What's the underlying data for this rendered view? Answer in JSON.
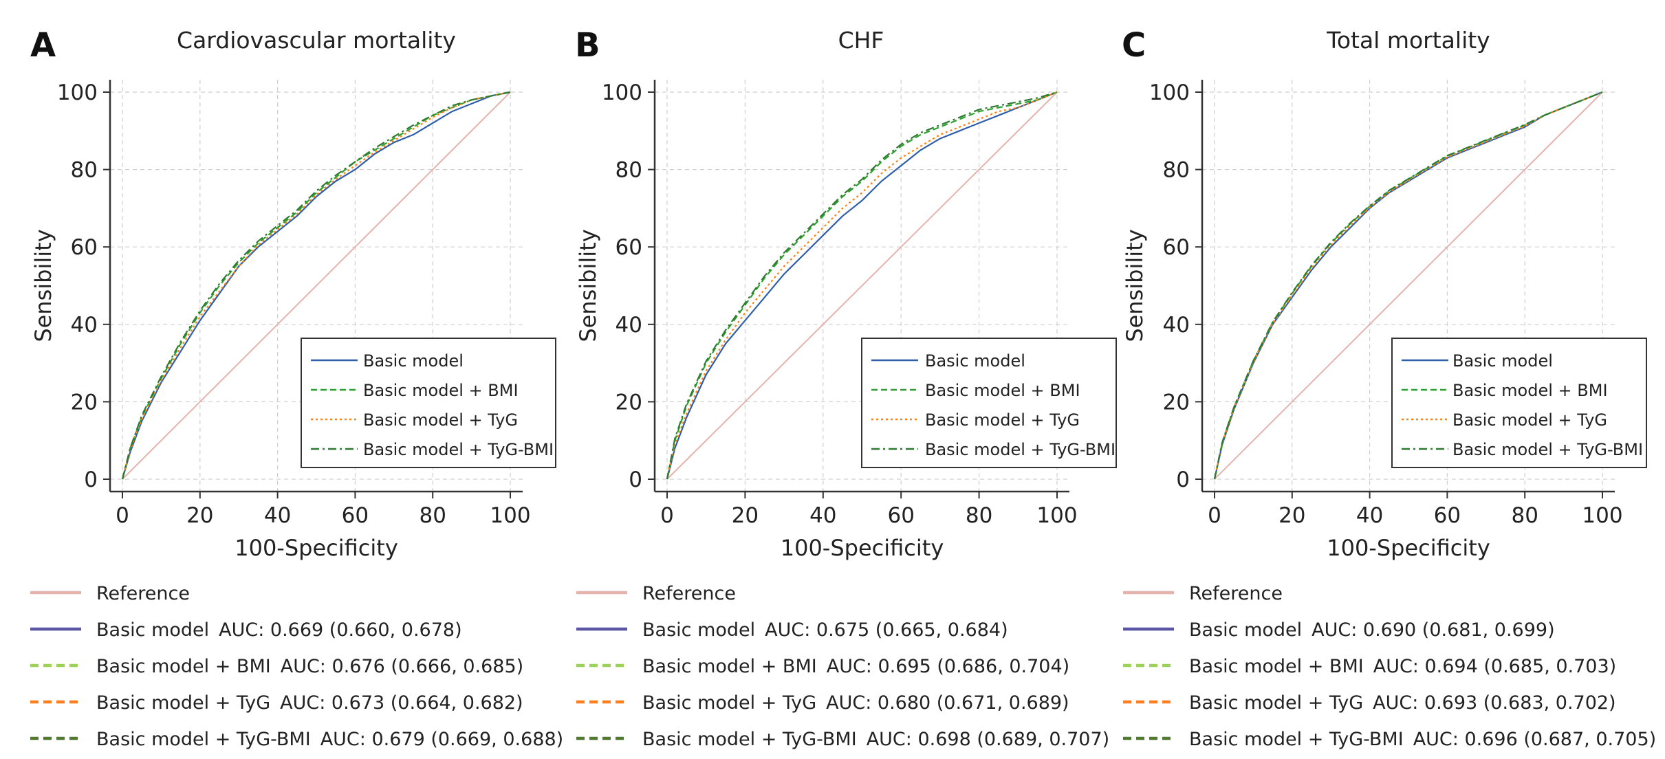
{
  "colors": {
    "reference": "#e5b3ac",
    "basic": "#2f5fa8",
    "bmi": "#2ca02c",
    "tyg": "#ff7f0e",
    "tygbmi": "#2d7a30",
    "bottom_basic": "#5a55a5",
    "bottom_bmi": "#9bd356",
    "bottom_tyg": "#ff7f1e",
    "bottom_tygbmi": "#4f7a30",
    "grid": "#cfcfcf"
  },
  "chart_data": [
    {
      "type": "line",
      "panel": "A",
      "title": "Cardiovascular mortality",
      "xlabel": "100-Specificity",
      "ylabel": "Sensibility",
      "xlim": [
        0,
        100
      ],
      "ylim": [
        0,
        100
      ],
      "xticks": [
        "0",
        "20",
        "40",
        "60",
        "80",
        "100"
      ],
      "yticks": [
        "0",
        "20",
        "40",
        "60",
        "80",
        "100"
      ],
      "grid": true,
      "legend_position": "bottom-right",
      "x": [
        0,
        2,
        5,
        10,
        15,
        20,
        25,
        30,
        35,
        40,
        45,
        50,
        55,
        60,
        65,
        70,
        75,
        80,
        85,
        90,
        95,
        100
      ],
      "series": [
        {
          "name": "Basic model",
          "style": "solid",
          "values": [
            0,
            7,
            15,
            25,
            33,
            41,
            48,
            55,
            60,
            64,
            68,
            73,
            77,
            80,
            84,
            87,
            89,
            92,
            95,
            97,
            99,
            100
          ]
        },
        {
          "name": "Basic model + BMI",
          "style": "dashed",
          "values": [
            0,
            8,
            16,
            26,
            35,
            43,
            50,
            56,
            61,
            65,
            69,
            74,
            78,
            82,
            85,
            88,
            91,
            94,
            96,
            98,
            99,
            100
          ]
        },
        {
          "name": "Basic model + TyG",
          "style": "dotted",
          "values": [
            0,
            7.5,
            15.5,
            25.5,
            34,
            42,
            48.5,
            55,
            60.5,
            64.5,
            68.5,
            73.5,
            77.5,
            81,
            84.5,
            87.5,
            90.5,
            93.5,
            96,
            98,
            99,
            100
          ]
        },
        {
          "name": "Basic model + TyG-BMI",
          "style": "dashdot",
          "values": [
            0,
            8,
            16.5,
            26.5,
            35.5,
            43.5,
            50.5,
            56.5,
            61.5,
            65.5,
            69.5,
            74.5,
            78.5,
            82,
            85.5,
            88.5,
            91.5,
            94,
            96.5,
            98,
            99,
            100
          ]
        }
      ],
      "legend_entries": [
        {
          "label": "Reference",
          "auc": ""
        },
        {
          "label": "Basic model",
          "auc": "AUC: 0.669 (0.660, 0.678)"
        },
        {
          "label": "Basic model + BMI",
          "auc": "AUC: 0.676 (0.666, 0.685)"
        },
        {
          "label": "Basic model + TyG",
          "auc": "AUC: 0.673 (0.664, 0.682)"
        },
        {
          "label": "Basic model + TyG-BMI",
          "auc": "AUC: 0.679 (0.669, 0.688)"
        }
      ]
    },
    {
      "type": "line",
      "panel": "B",
      "title": "CHF",
      "xlabel": "100-Specificity",
      "ylabel": "Sensibility",
      "xlim": [
        0,
        100
      ],
      "ylim": [
        0,
        100
      ],
      "xticks": [
        "0",
        "20",
        "40",
        "60",
        "80",
        "100"
      ],
      "yticks": [
        "0",
        "20",
        "40",
        "60",
        "80",
        "100"
      ],
      "grid": true,
      "legend_position": "bottom-right",
      "x": [
        0,
        2,
        5,
        10,
        15,
        20,
        25,
        30,
        35,
        40,
        45,
        50,
        55,
        60,
        65,
        70,
        75,
        80,
        85,
        90,
        95,
        100
      ],
      "series": [
        {
          "name": "Basic model",
          "style": "solid",
          "values": [
            0,
            8,
            16,
            27,
            35,
            41,
            47,
            53,
            58,
            63,
            68,
            72,
            77,
            81,
            85,
            88,
            90,
            92,
            94,
            96,
            98,
            100
          ]
        },
        {
          "name": "Basic model + BMI",
          "style": "dashed",
          "values": [
            0,
            10,
            19,
            30,
            38,
            45,
            52,
            58,
            63,
            68,
            73,
            77,
            82,
            86,
            89,
            91,
            93,
            95,
            96,
            97,
            98,
            100
          ]
        },
        {
          "name": "Basic model + TyG",
          "style": "dotted",
          "values": [
            0,
            9,
            17,
            28,
            36,
            43,
            49,
            55,
            60,
            65,
            70,
            74,
            79,
            83,
            86,
            89,
            91,
            93,
            95,
            96,
            98,
            100
          ]
        },
        {
          "name": "Basic model + TyG-BMI",
          "style": "dashdot",
          "values": [
            0,
            10.5,
            19.5,
            30.5,
            38.5,
            45.5,
            52.5,
            58.5,
            63.5,
            68.5,
            73.5,
            77.5,
            82.5,
            86.5,
            89.5,
            91.5,
            93.5,
            95.5,
            96.5,
            97.5,
            98.5,
            100
          ]
        }
      ],
      "legend_entries": [
        {
          "label": "Reference",
          "auc": ""
        },
        {
          "label": "Basic model",
          "auc": "AUC: 0.675 (0.665, 0.684)"
        },
        {
          "label": "Basic model + BMI",
          "auc": "AUC: 0.695 (0.686, 0.704)"
        },
        {
          "label": "Basic model + TyG",
          "auc": "AUC: 0.680 (0.671, 0.689)"
        },
        {
          "label": "Basic model + TyG-BMI",
          "auc": "AUC: 0.698 (0.689, 0.707)"
        }
      ]
    },
    {
      "type": "line",
      "panel": "C",
      "title": "Total mortality",
      "xlabel": "100-Specificity",
      "ylabel": "Sensibility",
      "xlim": [
        0,
        100
      ],
      "ylim": [
        0,
        100
      ],
      "xticks": [
        "0",
        "20",
        "40",
        "60",
        "80",
        "100"
      ],
      "yticks": [
        "0",
        "20",
        "40",
        "60",
        "80",
        "100"
      ],
      "grid": true,
      "legend_position": "bottom-right",
      "x": [
        0,
        2,
        5,
        10,
        15,
        20,
        25,
        30,
        35,
        40,
        45,
        50,
        55,
        60,
        65,
        70,
        75,
        80,
        85,
        90,
        95,
        100
      ],
      "series": [
        {
          "name": "Basic model",
          "style": "solid",
          "values": [
            0,
            9,
            18,
            30,
            40,
            47,
            54,
            60,
            65,
            70,
            74,
            77,
            80,
            83,
            85,
            87,
            89,
            91,
            94,
            96,
            98,
            100
          ]
        },
        {
          "name": "Basic model + BMI",
          "style": "dashed",
          "values": [
            0,
            9.5,
            18.5,
            30.5,
            40.5,
            48,
            55,
            61,
            66,
            70.5,
            74.5,
            77.5,
            80.5,
            83.5,
            85.5,
            87.5,
            89.5,
            91.5,
            94,
            96,
            98,
            100
          ]
        },
        {
          "name": "Basic model + TyG",
          "style": "dotted",
          "values": [
            0,
            9.2,
            18.2,
            30.2,
            40.2,
            47.5,
            54.5,
            60.5,
            65.5,
            70.2,
            74.2,
            77.2,
            80.2,
            83.2,
            85.2,
            87.2,
            89.2,
            91.2,
            94,
            96,
            98,
            100
          ]
        },
        {
          "name": "Basic model + TyG-BMI",
          "style": "dashdot",
          "values": [
            0,
            9.6,
            18.6,
            30.6,
            40.6,
            48.2,
            55.2,
            61.2,
            66.2,
            70.6,
            74.6,
            77.6,
            80.6,
            83.6,
            85.6,
            87.6,
            89.6,
            91.6,
            94,
            96,
            98,
            100
          ]
        }
      ],
      "legend_entries": [
        {
          "label": "Reference",
          "auc": ""
        },
        {
          "label": "Basic model",
          "auc": "AUC: 0.690 (0.681, 0.699)"
        },
        {
          "label": "Basic model + BMI",
          "auc": "AUC: 0.694 (0.685, 0.703)"
        },
        {
          "label": "Basic model + TyG",
          "auc": "AUC: 0.693 (0.683, 0.702)"
        },
        {
          "label": "Basic model + TyG-BMI",
          "auc": "AUC: 0.696 (0.687, 0.705)"
        }
      ]
    }
  ]
}
